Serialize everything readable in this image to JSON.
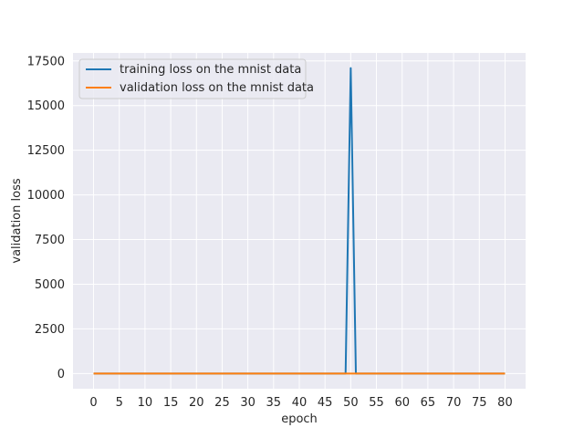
{
  "chart_data": {
    "type": "line",
    "title": "",
    "xlabel": "epoch",
    "ylabel": "validation loss",
    "xlim": [
      -4,
      84
    ],
    "ylim": [
      -850,
      17950
    ],
    "xticks": [
      0,
      5,
      10,
      15,
      20,
      25,
      30,
      35,
      40,
      45,
      50,
      55,
      60,
      65,
      70,
      75,
      80
    ],
    "yticks": [
      0,
      2500,
      5000,
      7500,
      10000,
      12500,
      15000,
      17500
    ],
    "grid": true,
    "legend_position": "upper-left",
    "series": [
      {
        "name": "training loss on the mnist data",
        "color": "#1f77b4",
        "points": [
          [
            0,
            0
          ],
          [
            49,
            0
          ],
          [
            50,
            17100
          ],
          [
            51,
            0
          ],
          [
            80,
            0
          ]
        ]
      },
      {
        "name": "validation loss on the mnist data",
        "color": "#ff7f0e",
        "points": [
          [
            0,
            0
          ],
          [
            80,
            0
          ]
        ]
      }
    ]
  }
}
